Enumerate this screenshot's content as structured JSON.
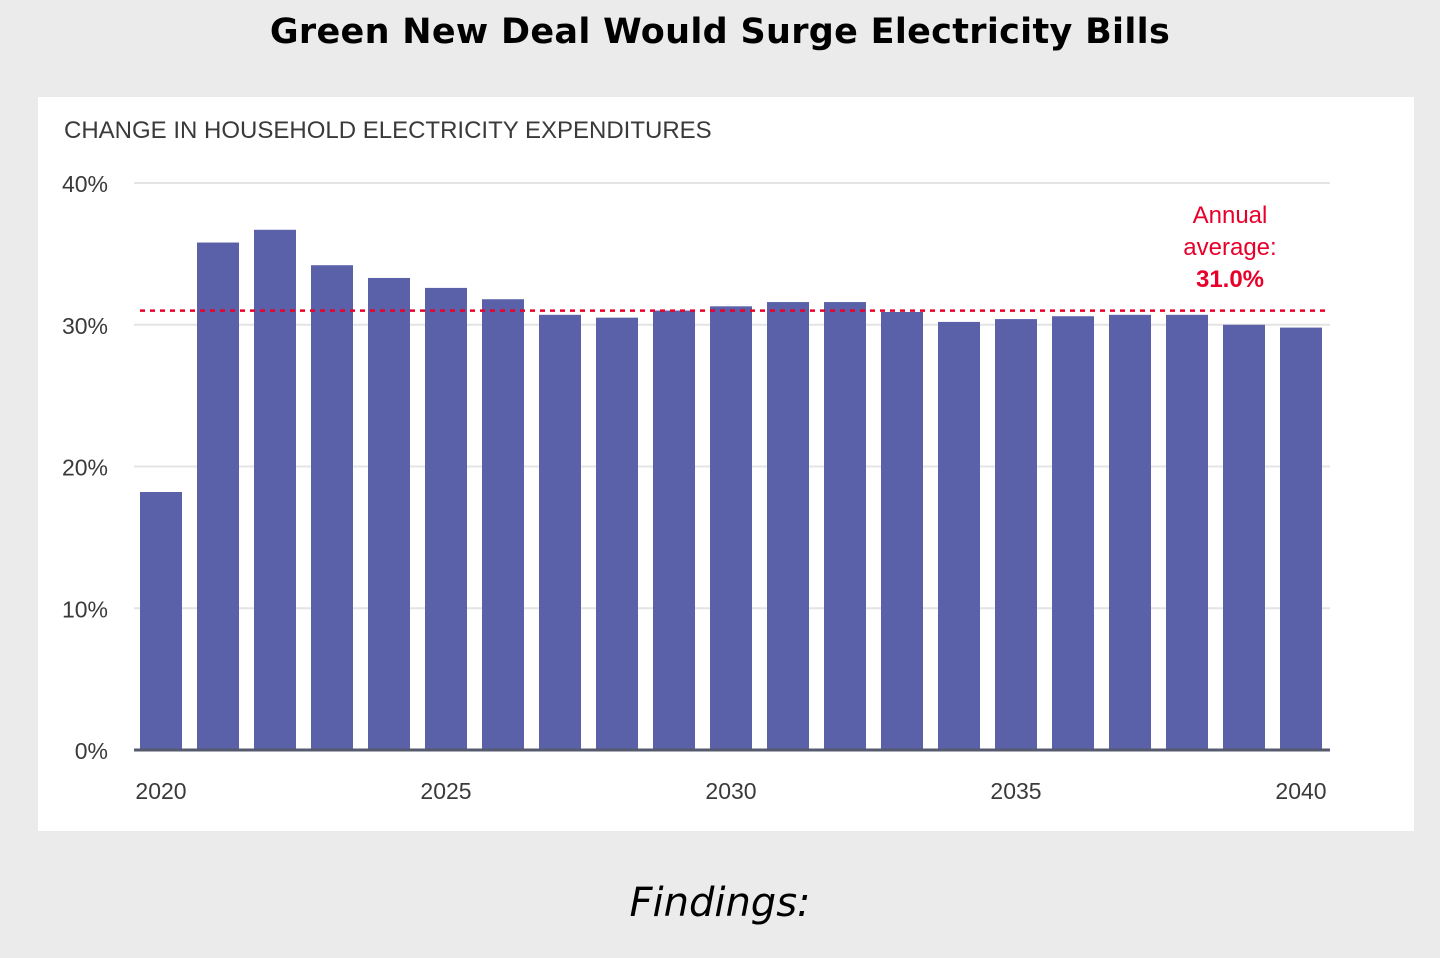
{
  "page": {
    "title": "Green New Deal Would Surge Electricity Bills",
    "findings_label": "Findings:"
  },
  "colors": {
    "background": "#ebebeb",
    "panel": "#ffffff",
    "bar": "#5a61a9",
    "average_line": "#e8002a",
    "grid": "#e4e4e4",
    "text": "#3a3a3a"
  },
  "chart_data": {
    "type": "bar",
    "title": "CHANGE IN HOUSEHOLD ELECTRICITY EXPENDITURES",
    "xlabel": "",
    "ylabel": "",
    "categories": [
      2020,
      2021,
      2022,
      2023,
      2024,
      2025,
      2026,
      2027,
      2028,
      2029,
      2030,
      2031,
      2032,
      2033,
      2034,
      2035,
      2036,
      2037,
      2038,
      2039,
      2040
    ],
    "values": [
      18.2,
      35.8,
      36.7,
      34.2,
      33.3,
      32.6,
      31.8,
      30.7,
      30.5,
      31.0,
      31.3,
      31.6,
      31.6,
      30.9,
      30.2,
      30.4,
      30.6,
      30.7,
      30.7,
      30.0,
      29.8
    ],
    "ylim": [
      0,
      40
    ],
    "y_ticks": [
      0,
      10,
      20,
      30,
      40
    ],
    "y_tick_labels": [
      "0%",
      "10%",
      "20%",
      "30%",
      "40%"
    ],
    "x_ticks": [
      2020,
      2025,
      2030,
      2035,
      2040
    ],
    "x_tick_labels": [
      "2020",
      "2025",
      "2030",
      "2035",
      "2040"
    ],
    "grid": true,
    "average": {
      "value": 31.0,
      "label_line1": "Annual",
      "label_line2": "average:",
      "label_value": "31.0%"
    }
  }
}
